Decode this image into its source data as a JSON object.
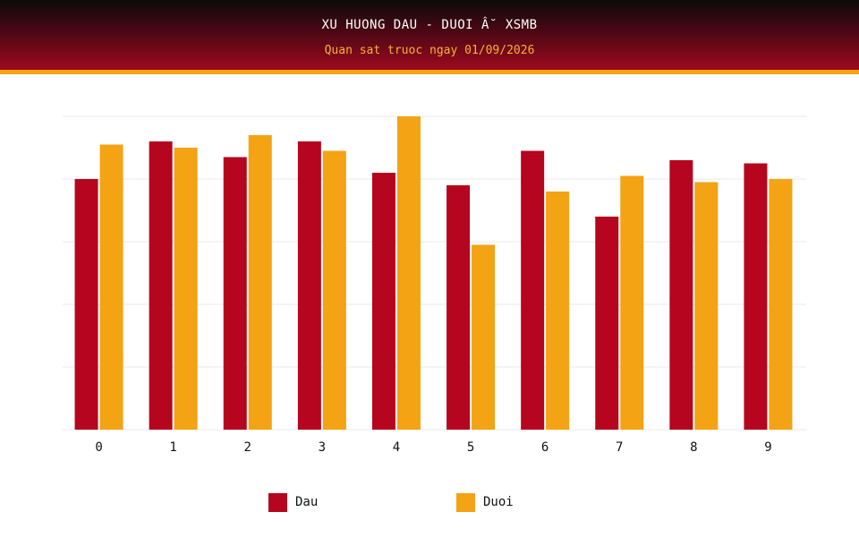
{
  "header": {
    "title": "XU HUONG DAU - DUOI Â˘ XSMB",
    "subtitle": "Quan sat truoc ngay 01/09/2026"
  },
  "colors": {
    "dau": "#b5051f",
    "duoi": "#f3a313",
    "grid": "#e8e8e8",
    "header_line": "#f3a313"
  },
  "legend": [
    {
      "label": "Dau",
      "color": "#b5051f"
    },
    {
      "label": "Duoi",
      "color": "#f3a313"
    }
  ],
  "chart_data": {
    "type": "bar",
    "title": "XU HUONG DAU - DUOI Â˘ XSMB",
    "subtitle": "Quan sat truoc ngay 01/09/2026",
    "xlabel": "",
    "ylabel": "",
    "categories": [
      "0",
      "1",
      "2",
      "3",
      "4",
      "5",
      "6",
      "7",
      "8",
      "9"
    ],
    "series": [
      {
        "name": "Dau",
        "values": [
          8.0,
          9.2,
          8.7,
          9.2,
          8.2,
          7.8,
          8.9,
          6.8,
          8.6,
          8.5
        ]
      },
      {
        "name": "Duoi",
        "values": [
          9.1,
          9.0,
          9.4,
          8.9,
          10.0,
          5.9,
          7.6,
          8.1,
          7.9,
          8.0
        ]
      }
    ],
    "ylim": [
      0,
      10
    ],
    "grid": true,
    "y_tick_labels_shown": false,
    "legend_position": "bottom"
  }
}
